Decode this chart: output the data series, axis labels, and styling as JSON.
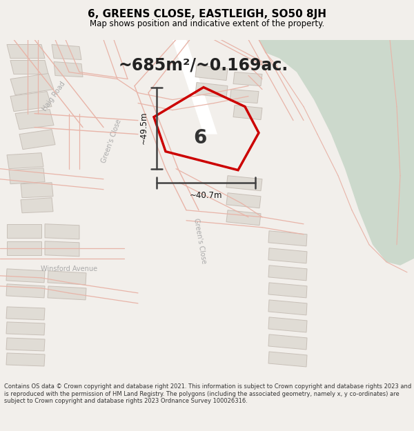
{
  "title": "6, GREENS CLOSE, EASTLEIGH, SO50 8JH",
  "subtitle": "Map shows position and indicative extent of the property.",
  "area_text": "~685m²/~0.169ac.",
  "dim1_text": "~49.5m",
  "dim2_text": "~40.7m",
  "label": "6",
  "footer": "Contains OS data © Crown copyright and database right 2021. This information is subject to Crown copyright and database rights 2023 and is reproduced with the permission of HM Land Registry. The polygons (including the associated geometry, namely x, y co-ordinates) are subject to Crown copyright and database rights 2023 Ordnance Survey 100026316.",
  "bg_color": "#f2efeb",
  "map_bg": "#f5f2ee",
  "green_area_color": "#ccd9cc",
  "road_color": "#ffffff",
  "building_color": "#e0dcd5",
  "building_outline": "#c8c0b8",
  "plot_outline": "#cc0000",
  "road_line_color": "#e8b4a8",
  "street_label_color": "#aaaaaa",
  "title_color": "#000000",
  "footer_color": "#333333",
  "dim_line_color": "#404040",
  "area_text_color": "#222222"
}
